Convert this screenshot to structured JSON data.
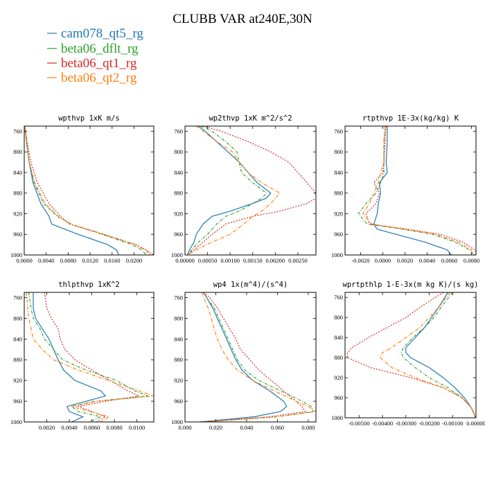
{
  "figure": {
    "title": "CLUBB VAR at240E,30N",
    "legend": [
      "cam078_qt5_rg",
      "beta06_dflt_rg",
      "beta06_qt1_rg",
      "beta06_qt2_rg"
    ],
    "series_colors": [
      "#1f77b4",
      "#2ca02c",
      "#d62728",
      "#ff7f0e"
    ],
    "legend_placement": "top-left"
  },
  "chart_data": [
    {
      "type": "line",
      "title": "wpthvp  1xK m/s",
      "xlim": [
        0,
        0.0236
      ],
      "ylim": [
        1000,
        750
      ],
      "xticks": [
        "0.0000",
        "0.0040",
        "0.0080",
        "0.0120",
        "0.0160",
        "0.0200"
      ],
      "xtick_values": [
        0,
        0.004,
        0.008,
        0.012,
        0.016,
        0.02
      ],
      "yticks": [
        "760",
        "800",
        "840",
        "880",
        "920",
        "960",
        "1000"
      ],
      "series": [
        {
          "p": [
            750,
            780,
            820,
            860,
            900,
            925,
            940,
            960,
            980,
            990,
            1000
          ],
          "x": [
            0.0001,
            0.0004,
            0.0009,
            0.0016,
            0.003,
            0.0045,
            0.005,
            0.0098,
            0.0152,
            0.0168,
            0.0172
          ]
        },
        {
          "p": [
            750,
            780,
            820,
            860,
            900,
            925,
            940,
            960,
            980,
            990,
            1000
          ],
          "x": [
            0.0001,
            0.0004,
            0.0009,
            0.0018,
            0.0035,
            0.006,
            0.0086,
            0.0142,
            0.0196,
            0.0214,
            0.0222
          ]
        },
        {
          "p": [
            750,
            780,
            820,
            860,
            900,
            925,
            940,
            960,
            980,
            990,
            1000
          ],
          "x": [
            0.0001,
            0.0005,
            0.0012,
            0.0024,
            0.0045,
            0.0066,
            0.0082,
            0.0144,
            0.0204,
            0.0222,
            0.0236
          ]
        },
        {
          "p": [
            750,
            780,
            820,
            860,
            900,
            925,
            940,
            960,
            980,
            990,
            1000
          ],
          "x": [
            0.0001,
            0.0004,
            0.0009,
            0.0019,
            0.0038,
            0.0062,
            0.0084,
            0.0146,
            0.0202,
            0.022,
            0.023
          ]
        }
      ]
    },
    {
      "type": "line",
      "title": "wp2thvp  1xK m^2/s^2",
      "xlim": [
        0,
        0.0029
      ],
      "ylim": [
        1000,
        750
      ],
      "xticks": [
        "0.00000",
        "0.00050",
        "0.00100",
        "0.00150",
        "0.00200",
        "0.00250"
      ],
      "xtick_values": [
        0,
        0.0005,
        0.001,
        0.0015,
        0.002,
        0.0025
      ],
      "yticks": [
        "760",
        "800",
        "840",
        "880",
        "920",
        "960",
        "1000"
      ],
      "series": [
        {
          "p": [
            750,
            760,
            780,
            800,
            820,
            840,
            860,
            880,
            890,
            900,
            915,
            925,
            940,
            960,
            975,
            990,
            1000
          ],
          "x": [
            0.0003,
            0.00045,
            0.0007,
            0.00095,
            0.0012,
            0.0014,
            0.0016,
            0.0019,
            0.0018,
            0.0015,
            0.001,
            0.0006,
            0.0004,
            0.00025,
            0.0002,
            0.0001,
            5e-05
          ]
        },
        {
          "p": [
            750,
            760,
            780,
            800,
            820,
            840,
            860,
            880,
            890,
            900,
            915,
            925,
            940,
            960,
            975,
            990,
            1000
          ],
          "x": [
            0.00035,
            0.0006,
            0.0009,
            0.00115,
            0.0012,
            0.00125,
            0.0015,
            0.0018,
            0.0017,
            0.0015,
            0.0012,
            0.0009,
            0.0007,
            0.0005,
            0.0003,
            0.00015,
            5e-05
          ]
        },
        {
          "p": [
            750,
            760,
            780,
            800,
            820,
            840,
            860,
            880,
            890,
            900,
            915,
            925,
            940,
            960,
            975,
            990,
            1000
          ],
          "x": [
            0.0004,
            0.0008,
            0.0014,
            0.0019,
            0.0023,
            0.0025,
            0.0027,
            0.0029,
            0.0029,
            0.0027,
            0.0021,
            0.0015,
            0.0009,
            0.0006,
            0.0004,
            0.0002,
            5e-05
          ]
        },
        {
          "p": [
            750,
            760,
            780,
            800,
            820,
            840,
            860,
            880,
            890,
            900,
            915,
            925,
            940,
            960,
            975,
            990,
            1000
          ],
          "x": [
            0.00025,
            0.0004,
            0.0007,
            0.00105,
            0.0012,
            0.0014,
            0.0017,
            0.0021,
            0.002,
            0.0019,
            0.0017,
            0.0015,
            0.0013,
            0.001,
            0.0006,
            0.00025,
            5e-05
          ]
        }
      ]
    },
    {
      "type": "line",
      "title": "rtpthvp  1E-3x(kg/kg) K",
      "xlim": [
        -0.0034,
        0.0084
      ],
      "ylim": [
        1000,
        750
      ],
      "xticks": [
        "-0.0020",
        "0.0000",
        "0.0020",
        "0.0040",
        "0.0060",
        "0.0080"
      ],
      "xtick_values": [
        -0.002,
        0,
        0.002,
        0.004,
        0.006,
        0.008
      ],
      "yticks": [
        "760",
        "800",
        "840",
        "880",
        "920",
        "960",
        "1000"
      ],
      "series": [
        {
          "p": [
            750,
            780,
            820,
            840,
            860,
            880,
            900,
            920,
            940,
            950,
            960,
            975,
            990,
            1000
          ],
          "x": [
            0.0004,
            0.0004,
            0.0003,
            0.0004,
            -0.0003,
            -0.0002,
            -0.0004,
            -0.0005,
            -0.0008,
            -0.0005,
            0.0012,
            0.0038,
            0.0058,
            0.0062
          ]
        },
        {
          "p": [
            750,
            780,
            820,
            840,
            860,
            880,
            900,
            920,
            940,
            950,
            960,
            975,
            990,
            1000
          ],
          "x": [
            0.0002,
            0.0001,
            0.0001,
            0.0001,
            -0.0002,
            -0.0006,
            -0.0015,
            -0.0022,
            -0.0014,
            0.0018,
            0.0045,
            0.0065,
            0.0078,
            0.0082
          ]
        },
        {
          "p": [
            750,
            780,
            820,
            840,
            860,
            880,
            900,
            920,
            940,
            950,
            960,
            975,
            990,
            1000
          ],
          "x": [
            0.0003,
            0.0002,
            0.0001,
            0.0,
            -0.0008,
            -0.0003,
            -0.0006,
            -0.0015,
            -0.0012,
            0.0022,
            0.0052,
            0.0072,
            0.0083,
            0.0085
          ]
        },
        {
          "p": [
            750,
            780,
            820,
            840,
            860,
            880,
            900,
            920,
            940,
            950,
            960,
            975,
            990,
            1000
          ],
          "x": [
            0.0002,
            0.0001,
            0.0001,
            -0.0002,
            -0.0004,
            -0.0008,
            -0.0012,
            -0.0018,
            -0.001,
            0.002,
            0.0048,
            0.0068,
            0.008,
            0.0083
          ]
        }
      ]
    },
    {
      "type": "line",
      "title": "thlpthvp  1xK^2",
      "xlim": [
        0,
        0.0115
      ],
      "ylim": [
        1000,
        750
      ],
      "xticks": [
        "0.0020",
        "0.0040",
        "0.0060",
        "0.0080",
        "0.0100"
      ],
      "xtick_values": [
        0.002,
        0.004,
        0.006,
        0.008,
        0.01
      ],
      "yticks": [
        "760",
        "800",
        "840",
        "880",
        "920",
        "960",
        "1000"
      ],
      "series": [
        {
          "p": [
            750,
            780,
            800,
            820,
            840,
            860,
            880,
            900,
            920,
            940,
            950,
            960,
            970,
            980,
            990,
            1000
          ],
          "x": [
            0.0008,
            0.0008,
            0.001,
            0.0016,
            0.0022,
            0.0026,
            0.003,
            0.0035,
            0.0045,
            0.0068,
            0.0072,
            0.0055,
            0.0038,
            0.004,
            0.0052,
            0.0042
          ]
        },
        {
          "p": [
            750,
            780,
            800,
            820,
            840,
            860,
            880,
            900,
            920,
            940,
            950,
            960,
            970,
            980,
            990,
            1000
          ],
          "x": [
            0.0004,
            0.0006,
            0.0008,
            0.0014,
            0.0018,
            0.0026,
            0.0034,
            0.0055,
            0.0082,
            0.0098,
            0.011,
            0.0062,
            0.0042,
            0.0048,
            0.0068,
            0.0058
          ]
        },
        {
          "p": [
            750,
            780,
            800,
            820,
            840,
            860,
            880,
            900,
            920,
            940,
            950,
            960,
            970,
            980,
            990,
            1000
          ],
          "x": [
            0.0018,
            0.002,
            0.0024,
            0.003,
            0.0032,
            0.0036,
            0.0045,
            0.006,
            0.0076,
            0.0092,
            0.0102,
            0.0072,
            0.0048,
            0.006,
            0.0072,
            0.0064
          ]
        },
        {
          "p": [
            750,
            780,
            800,
            820,
            840,
            860,
            880,
            900,
            920,
            940,
            950,
            960,
            970,
            980,
            990,
            1000
          ],
          "x": [
            0.0002,
            0.0003,
            0.0004,
            0.0006,
            0.0008,
            0.0016,
            0.0026,
            0.0048,
            0.0075,
            0.0102,
            0.0115,
            0.0064,
            0.0042,
            0.0058,
            0.0075,
            0.0068
          ]
        }
      ]
    },
    {
      "type": "line",
      "title": "wp4  1x(m^4)/(s^4)",
      "xlim": [
        0,
        0.085
      ],
      "ylim": [
        1000,
        750
      ],
      "xticks": [
        "0.000",
        "0.020",
        "0.040",
        "0.060",
        "0.080"
      ],
      "xtick_values": [
        0,
        0.02,
        0.04,
        0.06,
        0.08
      ],
      "yticks": [
        "760",
        "800",
        "840",
        "880",
        "920",
        "960",
        "1000"
      ],
      "series": [
        {
          "p": [
            750,
            760,
            780,
            800,
            820,
            840,
            860,
            880,
            900,
            920,
            940,
            960,
            970,
            980,
            990,
            1000
          ],
          "x": [
            0.012,
            0.014,
            0.018,
            0.021,
            0.024,
            0.027,
            0.03,
            0.033,
            0.037,
            0.044,
            0.055,
            0.064,
            0.066,
            0.062,
            0.045,
            0.01
          ]
        },
        {
          "p": [
            750,
            760,
            780,
            800,
            820,
            840,
            860,
            880,
            900,
            920,
            940,
            960,
            970,
            980,
            990,
            1000
          ],
          "x": [
            0.012,
            0.014,
            0.019,
            0.022,
            0.025,
            0.028,
            0.031,
            0.034,
            0.039,
            0.048,
            0.062,
            0.076,
            0.082,
            0.083,
            0.06,
            0.012
          ]
        },
        {
          "p": [
            750,
            760,
            780,
            800,
            820,
            840,
            860,
            880,
            900,
            920,
            940,
            960,
            970,
            980,
            990,
            1000
          ],
          "x": [
            0.012,
            0.016,
            0.021,
            0.025,
            0.029,
            0.033,
            0.036,
            0.042,
            0.048,
            0.056,
            0.064,
            0.072,
            0.076,
            0.078,
            0.055,
            0.012
          ]
        },
        {
          "p": [
            750,
            760,
            780,
            800,
            820,
            840,
            860,
            880,
            900,
            920,
            940,
            960,
            970,
            980,
            990,
            1000
          ],
          "x": [
            0.011,
            0.012,
            0.015,
            0.017,
            0.019,
            0.021,
            0.024,
            0.028,
            0.034,
            0.044,
            0.058,
            0.072,
            0.08,
            0.085,
            0.06,
            0.012
          ]
        }
      ]
    },
    {
      "type": "line",
      "title": "wprtpthlp  1-E-3x(m kg K)/(s kg)",
      "xlim": [
        -0.0056,
        0.0
      ],
      "ylim": [
        1000,
        750
      ],
      "xticks": [
        "-0.00500",
        "-0.00400",
        "-0.00300",
        "-0.00200",
        "-0.00100",
        "0.00000"
      ],
      "xtick_values": [
        -0.005,
        -0.004,
        -0.003,
        -0.002,
        -0.001,
        0
      ],
      "yticks": [
        "760",
        "800",
        "840",
        "880",
        "920",
        "960",
        "1000"
      ],
      "series": [
        {
          "p": [
            750,
            780,
            800,
            820,
            840,
            860,
            870,
            880,
            900,
            920,
            940,
            960,
            980,
            990,
            1000
          ],
          "x": [
            -0.0012,
            -0.0016,
            -0.0019,
            -0.0022,
            -0.0026,
            -0.003,
            -0.003,
            -0.0028,
            -0.002,
            -0.0014,
            -0.0009,
            -0.0005,
            -0.0002,
            -0.0001,
            -2e-05
          ]
        },
        {
          "p": [
            750,
            780,
            800,
            820,
            840,
            860,
            870,
            880,
            900,
            920,
            940,
            960,
            980,
            990,
            1000
          ],
          "x": [
            -0.001,
            -0.0015,
            -0.0018,
            -0.0022,
            -0.0027,
            -0.0031,
            -0.0032,
            -0.0031,
            -0.0026,
            -0.002,
            -0.0012,
            -0.0006,
            -0.0002,
            -0.0001,
            -2e-05
          ]
        },
        {
          "p": [
            750,
            780,
            800,
            820,
            840,
            860,
            870,
            880,
            900,
            920,
            940,
            960,
            980,
            990,
            1000
          ],
          "x": [
            -0.0014,
            -0.0024,
            -0.003,
            -0.0038,
            -0.0046,
            -0.0053,
            -0.0055,
            -0.0055,
            -0.0045,
            -0.0028,
            -0.0014,
            -0.0006,
            -0.0002,
            -0.0001,
            -2e-05
          ]
        },
        {
          "p": [
            750,
            780,
            800,
            820,
            840,
            860,
            870,
            880,
            900,
            920,
            940,
            960,
            980,
            990,
            1000
          ],
          "x": [
            -0.0011,
            -0.0016,
            -0.002,
            -0.0024,
            -0.003,
            -0.0036,
            -0.004,
            -0.0041,
            -0.0036,
            -0.0026,
            -0.0014,
            -0.0006,
            -0.0002,
            -0.0001,
            -2e-05
          ]
        }
      ]
    }
  ]
}
